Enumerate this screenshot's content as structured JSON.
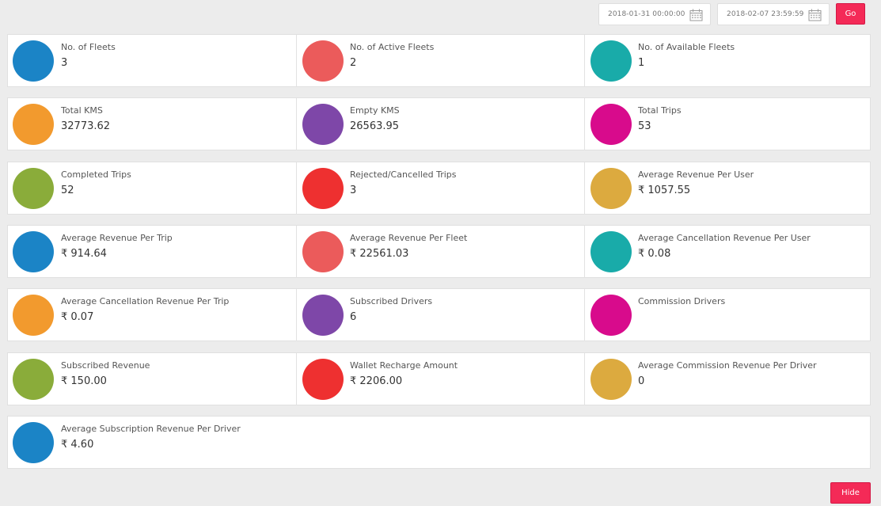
{
  "filters": {
    "from_date": "2018-01-31 00:00:00",
    "to_date": "2018-02-07 23:59:59",
    "go_label": "Go"
  },
  "hide_label": "Hide",
  "currency": "₹",
  "rows": [
    [
      {
        "label": "No. of Fleets",
        "value": "3",
        "color": "#1b84c6",
        "icon": "car-icon"
      },
      {
        "label": "No. of Active Fleets",
        "value": "2",
        "color": "#eb5b5b",
        "icon": "car-blocked-icon"
      },
      {
        "label": "No. of Available Fleets",
        "value": "1",
        "color": "#19aba9",
        "icon": "taxi-icon"
      }
    ],
    [
      {
        "label": "Total KMS",
        "value": "32773.62",
        "color": "#f29a2e",
        "icon": "speedometer-icon"
      },
      {
        "label": "Empty KMS",
        "value": "26563.95",
        "color": "#7e47a8",
        "icon": "gauge-blocked-icon"
      },
      {
        "label": "Total Trips",
        "value": "53",
        "color": "#d80b8c",
        "icon": "car-icon"
      }
    ],
    [
      {
        "label": "Completed Trips",
        "value": "52",
        "color": "#8aac3a",
        "icon": "car-blocked-icon"
      },
      {
        "label": "Rejected/Cancelled Trips",
        "value": "3",
        "color": "#ee3030",
        "icon": "blocked-icon"
      },
      {
        "label": "Average Revenue Per User",
        "value": "₹ 1057.55",
        "color": "#dcaa3f",
        "icon": "chart-growth-icon"
      }
    ],
    [
      {
        "label": "Average Revenue Per Trip",
        "value": "₹ 914.64",
        "color": "#1b84c6",
        "icon": "chart-car-icon"
      },
      {
        "label": "Average Revenue Per Fleet",
        "value": "₹ 22561.03",
        "color": "#eb5b5b",
        "icon": "chart-car-icon"
      },
      {
        "label": "Average Cancellation Revenue Per User",
        "value": "₹ 0.08",
        "color": "#19aba9",
        "icon": "user-cancel-icon"
      }
    ],
    [
      {
        "label": "Average Cancellation Revenue Per Trip",
        "value": "₹ 0.07",
        "color": "#f29a2e",
        "icon": "car-cancel-icon"
      },
      {
        "label": "Subscribed Drivers",
        "value": "6",
        "color": "#7e47a8",
        "icon": "driver-icon"
      },
      {
        "label": "Commission Drivers",
        "value": "",
        "color": "#d80b8c",
        "icon": "commission-icon"
      }
    ],
    [
      {
        "label": "Subscribed Revenue",
        "value": "₹ 150.00",
        "color": "#8aac3a",
        "icon": "chart-small-icon"
      },
      {
        "label": "Wallet Recharge Amount",
        "value": "₹ 2206.00",
        "color": "#ee3030",
        "icon": "wallet-icon"
      },
      {
        "label": "Average Commission Revenue Per Driver",
        "value": "0",
        "color": "#dcaa3f",
        "icon": "commission-driver-icon"
      }
    ],
    [
      {
        "label": "Average Subscription Revenue Per Driver",
        "value": "₹ 4.60",
        "color": "#1b84c6",
        "icon": "driver-revenue-icon"
      }
    ]
  ]
}
